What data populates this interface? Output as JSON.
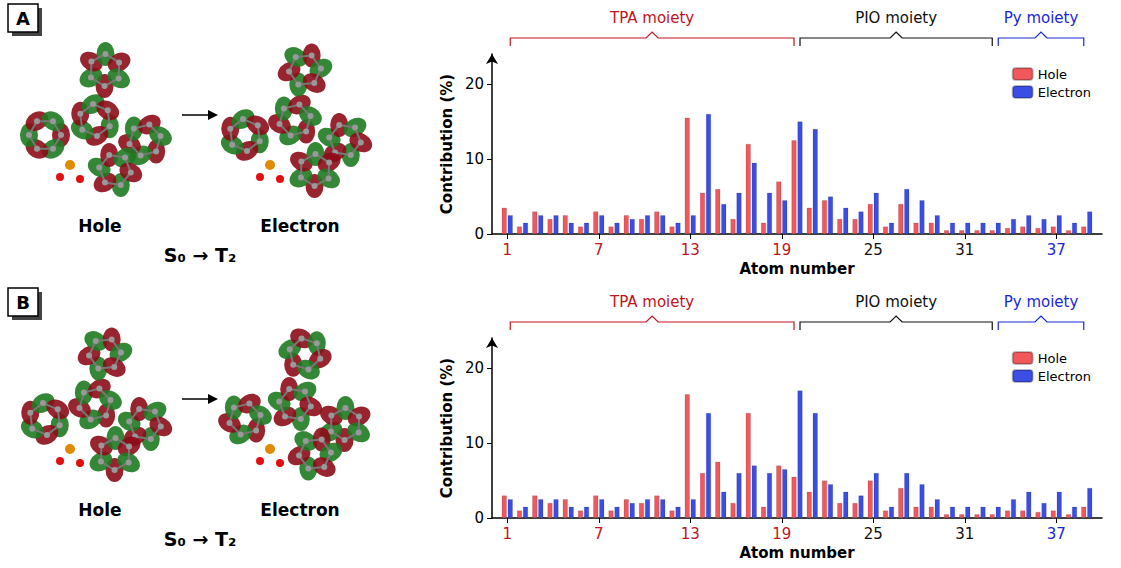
{
  "chart_data": [
    {
      "type": "bar",
      "panel": "A",
      "diagram": {
        "hole_label": "Hole",
        "electron_label": "Electron",
        "transition": "S₀ → T₂"
      },
      "x_label": "Atom number",
      "y_label": "Contribution (%)",
      "xlim": [
        0,
        40
      ],
      "xticks": [
        1,
        7,
        13,
        19,
        25,
        31,
        37
      ],
      "ylim": [
        0,
        24
      ],
      "yticks": [
        0,
        10,
        20
      ],
      "grid": false,
      "legend": "top-right",
      "groups": [
        {
          "label": "TPA moiety",
          "start": 1,
          "end": 20,
          "color": "#c0141e"
        },
        {
          "label": "PIO moiety",
          "start": 20,
          "end": 33,
          "color": "#111111"
        },
        {
          "label": "Py moiety",
          "start": 33,
          "end": 39,
          "color": "#1a28d8"
        }
      ],
      "x": [
        1,
        2,
        3,
        4,
        5,
        6,
        7,
        8,
        9,
        10,
        11,
        12,
        13,
        14,
        15,
        16,
        17,
        18,
        19,
        20,
        21,
        22,
        23,
        24,
        25,
        26,
        27,
        28,
        29,
        30,
        31,
        32,
        33,
        34,
        35,
        36,
        37,
        38,
        39
      ],
      "series": [
        {
          "name": "Hole",
          "color": "#f0585c",
          "values": [
            3.5,
            1,
            3,
            2,
            2.5,
            1,
            3,
            1,
            2.5,
            2,
            3,
            1,
            15.5,
            5.5,
            6,
            2,
            12,
            1.5,
            7,
            12.5,
            3.5,
            4.5,
            2,
            2,
            4,
            1,
            4,
            1.5,
            1.5,
            0.5,
            0.5,
            0.5,
            0.5,
            0.8,
            1,
            0.8,
            1,
            0.5,
            1
          ]
        },
        {
          "name": "Electron",
          "color": "#3a4ee6",
          "values": [
            2.5,
            1.5,
            2.5,
            2.5,
            1.5,
            1.5,
            2.5,
            1.5,
            2,
            2.5,
            2.5,
            1.5,
            2.5,
            16,
            4,
            5.5,
            9.5,
            5.5,
            4.5,
            15,
            14,
            5,
            3.5,
            3,
            5.5,
            1.5,
            6,
            4.5,
            2.5,
            1.5,
            1.5,
            1.5,
            1.5,
            2,
            2.5,
            2,
            2.5,
            1.5,
            3
          ]
        }
      ]
    },
    {
      "type": "bar",
      "panel": "B",
      "diagram": {
        "hole_label": "Hole",
        "electron_label": "Electron",
        "transition": "S₀ → T₂"
      },
      "x_label": "Atom number",
      "y_label": "Contribution (%)",
      "xlim": [
        0,
        40
      ],
      "xticks": [
        1,
        7,
        13,
        19,
        25,
        31,
        37
      ],
      "ylim": [
        0,
        24
      ],
      "yticks": [
        0,
        10,
        20
      ],
      "grid": false,
      "legend": "top-right",
      "groups": [
        {
          "label": "TPA moiety",
          "start": 1,
          "end": 20,
          "color": "#c0141e"
        },
        {
          "label": "PIO moiety",
          "start": 20,
          "end": 33,
          "color": "#111111"
        },
        {
          "label": "Py moiety",
          "start": 33,
          "end": 39,
          "color": "#1a28d8"
        }
      ],
      "x": [
        1,
        2,
        3,
        4,
        5,
        6,
        7,
        8,
        9,
        10,
        11,
        12,
        13,
        14,
        15,
        16,
        17,
        18,
        19,
        20,
        21,
        22,
        23,
        24,
        25,
        26,
        27,
        28,
        29,
        30,
        31,
        32,
        33,
        34,
        35,
        36,
        37,
        38,
        39
      ],
      "series": [
        {
          "name": "Hole",
          "color": "#f0585c",
          "values": [
            3,
            1,
            3,
            2,
            2.5,
            1,
            3,
            1,
            2.5,
            2,
            3,
            1,
            16.5,
            6,
            7.5,
            2,
            14,
            1.5,
            7,
            5.5,
            3.5,
            5,
            2,
            2,
            5,
            1,
            4,
            1.5,
            1.5,
            0.5,
            0.5,
            0.5,
            0.5,
            1,
            1,
            0.8,
            1,
            0.5,
            1.5
          ]
        },
        {
          "name": "Electron",
          "color": "#3a4ee6",
          "values": [
            2.5,
            1.5,
            2.5,
            2.5,
            1.5,
            1.5,
            2.5,
            1.5,
            2,
            2.5,
            2.5,
            1.5,
            2.5,
            14,
            3.5,
            6,
            7,
            6,
            6.5,
            17,
            14,
            4.5,
            3.5,
            3,
            6,
            1.5,
            6,
            4.5,
            2.5,
            1.5,
            1.5,
            1.5,
            1.5,
            2.5,
            3.5,
            2,
            3.5,
            1.5,
            4
          ]
        }
      ]
    }
  ]
}
